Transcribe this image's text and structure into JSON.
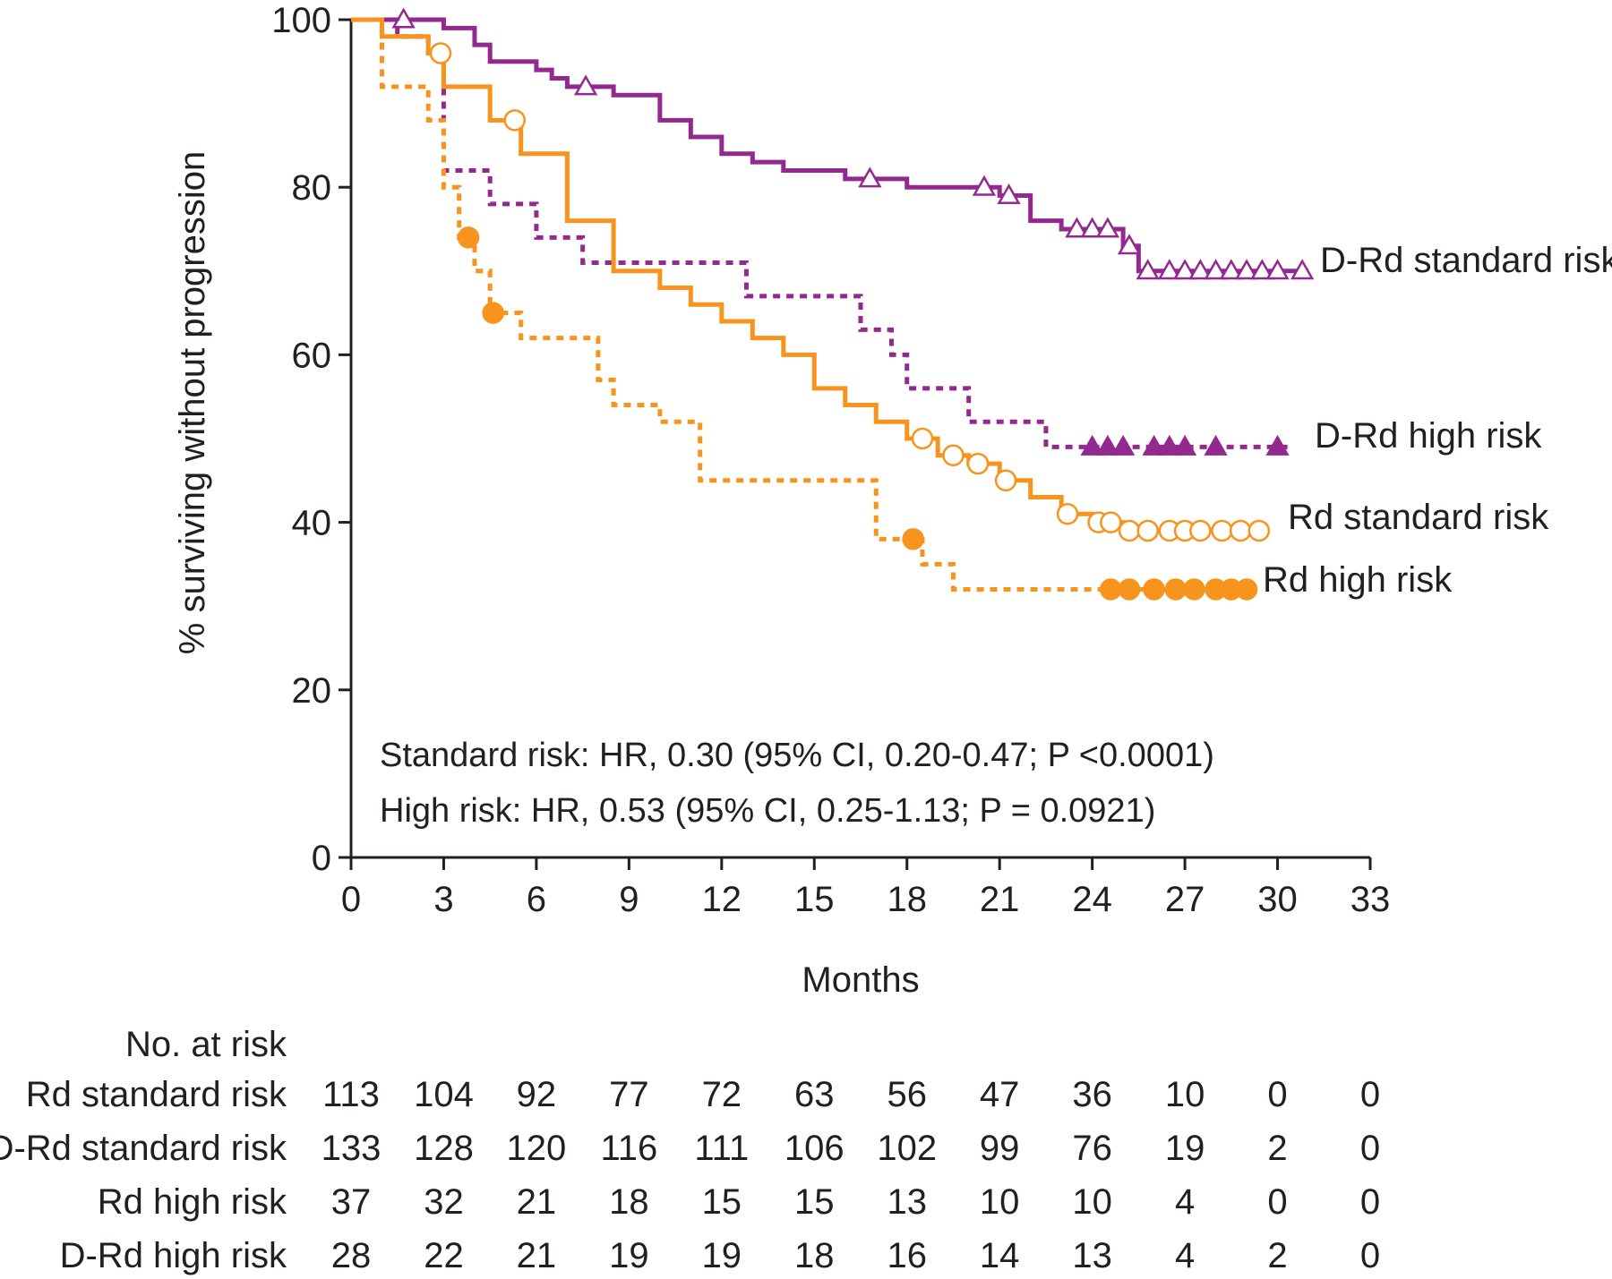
{
  "chart_data": {
    "type": "line",
    "title": "",
    "xlabel": "Months",
    "ylabel": "% surviving without progression",
    "xlim": [
      0,
      33
    ],
    "ylim": [
      0,
      100
    ],
    "x_ticks": [
      "0",
      "3",
      "6",
      "9",
      "12",
      "15",
      "18",
      "21",
      "24",
      "27",
      "30",
      "33"
    ],
    "y_ticks": [
      "0",
      "20",
      "40",
      "60",
      "80",
      "100"
    ],
    "colors": {
      "purple": "#93298f",
      "orange": "#f7941d"
    },
    "series": [
      {
        "name": "D-Rd standard risk",
        "color": "#93298f",
        "dash": "solid",
        "marker": "open-triangle",
        "points": [
          [
            0,
            100
          ],
          [
            2,
            100
          ],
          [
            3,
            99
          ],
          [
            4,
            97
          ],
          [
            4.5,
            95
          ],
          [
            6,
            94
          ],
          [
            6.5,
            93
          ],
          [
            7,
            92
          ],
          [
            8.5,
            91
          ],
          [
            10,
            88
          ],
          [
            11,
            86
          ],
          [
            12,
            84
          ],
          [
            13,
            83
          ],
          [
            14,
            82
          ],
          [
            16,
            81
          ],
          [
            18,
            80
          ],
          [
            21,
            79
          ],
          [
            22,
            76
          ],
          [
            23,
            75
          ],
          [
            25,
            73
          ],
          [
            25.5,
            70
          ],
          [
            31,
            70
          ]
        ],
        "censor_x": [
          1.7,
          7.6,
          16.8,
          20.5,
          21.3,
          23.5,
          24,
          24.5,
          25.2,
          25.8,
          26.5,
          27,
          27.5,
          28,
          28.5,
          29,
          29.5,
          30,
          30.8
        ]
      },
      {
        "name": "D-Rd high risk",
        "color": "#93298f",
        "dash": "dotted",
        "marker": "filled-triangle",
        "points": [
          [
            0,
            100
          ],
          [
            1.5,
            98
          ],
          [
            2.5,
            96
          ],
          [
            3,
            82
          ],
          [
            4.5,
            78
          ],
          [
            6,
            74
          ],
          [
            7.5,
            71
          ],
          [
            12.8,
            67
          ],
          [
            16.5,
            63
          ],
          [
            17.5,
            60
          ],
          [
            18,
            56
          ],
          [
            20,
            52
          ],
          [
            22.5,
            49
          ],
          [
            30.5,
            49
          ]
        ],
        "censor_x": [
          24,
          24.5,
          25,
          26,
          26.5,
          27,
          28,
          30
        ]
      },
      {
        "name": "Rd standard risk",
        "color": "#f7941d",
        "dash": "solid",
        "marker": "open-circle",
        "points": [
          [
            0,
            100
          ],
          [
            1,
            98
          ],
          [
            2.5,
            96
          ],
          [
            3,
            92
          ],
          [
            4.5,
            88
          ],
          [
            5.5,
            84
          ],
          [
            7,
            76
          ],
          [
            8.5,
            70
          ],
          [
            10,
            68
          ],
          [
            11,
            66
          ],
          [
            12,
            64
          ],
          [
            13,
            62
          ],
          [
            14,
            60
          ],
          [
            15,
            56
          ],
          [
            16,
            54
          ],
          [
            17,
            52
          ],
          [
            18,
            50
          ],
          [
            19,
            48
          ],
          [
            20,
            47
          ],
          [
            21,
            45
          ],
          [
            22,
            43
          ],
          [
            23,
            41
          ],
          [
            24,
            40
          ],
          [
            25,
            39
          ],
          [
            29.5,
            39
          ]
        ],
        "censor_x": [
          2.9,
          5.3,
          18.5,
          19.5,
          20.3,
          21.2,
          23.2,
          24.2,
          24.6,
          25.2,
          25.8,
          26.5,
          27,
          27.5,
          28.2,
          28.8,
          29.4
        ]
      },
      {
        "name": "Rd high risk",
        "color": "#f7941d",
        "dash": "dotted",
        "marker": "filled-circle",
        "points": [
          [
            0,
            100
          ],
          [
            1,
            92
          ],
          [
            2.5,
            88
          ],
          [
            3,
            80
          ],
          [
            3.5,
            74
          ],
          [
            4,
            70
          ],
          [
            4.5,
            65
          ],
          [
            5.5,
            62
          ],
          [
            8,
            57
          ],
          [
            8.5,
            54
          ],
          [
            10,
            52
          ],
          [
            11.3,
            45
          ],
          [
            17,
            38
          ],
          [
            18.5,
            35
          ],
          [
            19.5,
            32
          ],
          [
            28.5,
            32
          ]
        ],
        "censor_x": [
          3.8,
          4.6,
          18.2,
          24.6,
          25.2,
          26,
          26.7,
          27.3,
          28,
          28.5,
          29
        ]
      }
    ],
    "annotations": [
      "Standard risk: HR, 0.30 (95% CI, 0.20-0.47; P <0.0001)",
      "High risk: HR, 0.53 (95% CI, 0.25-1.13; P = 0.0921)"
    ],
    "risk_table": {
      "title": "No. at risk",
      "rows": [
        {
          "label": "Rd standard risk",
          "values": [
            113,
            104,
            92,
            77,
            72,
            63,
            56,
            47,
            36,
            10,
            0,
            0
          ]
        },
        {
          "label": "D-Rd standard risk",
          "values": [
            133,
            128,
            120,
            116,
            111,
            106,
            102,
            99,
            76,
            19,
            2,
            0
          ]
        },
        {
          "label": "Rd high risk",
          "values": [
            37,
            32,
            21,
            18,
            15,
            15,
            13,
            10,
            10,
            4,
            0,
            0
          ]
        },
        {
          "label": "D-Rd high risk",
          "values": [
            28,
            22,
            21,
            19,
            19,
            18,
            16,
            14,
            13,
            4,
            2,
            0
          ]
        }
      ]
    }
  }
}
